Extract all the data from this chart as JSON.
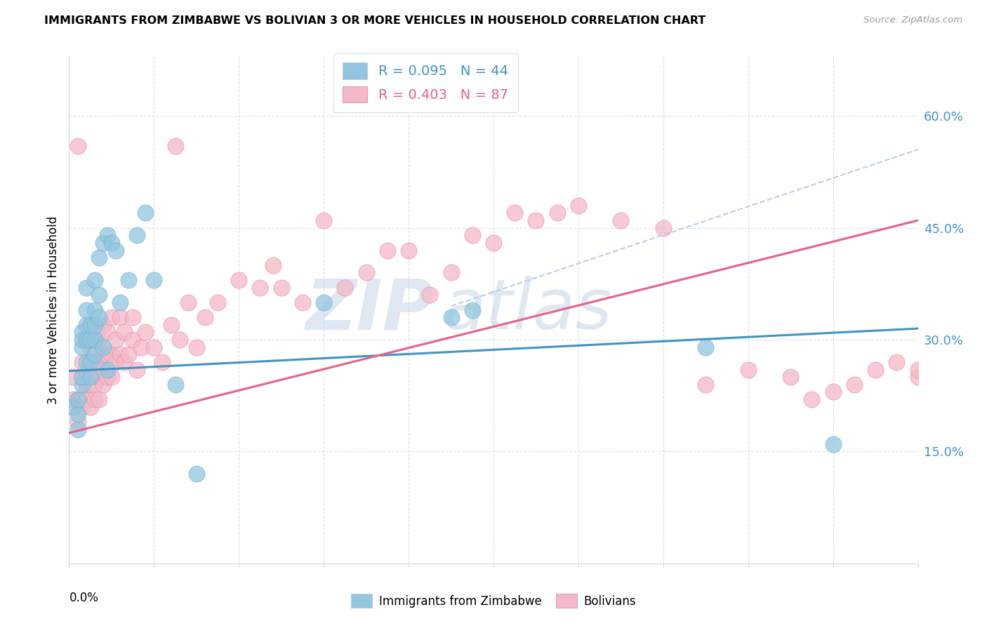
{
  "title": "IMMIGRANTS FROM ZIMBABWE VS BOLIVIAN 3 OR MORE VEHICLES IN HOUSEHOLD CORRELATION CHART",
  "source": "Source: ZipAtlas.com",
  "ylabel": "3 or more Vehicles in Household",
  "yticks_labels": [
    "60.0%",
    "45.0%",
    "30.0%",
    "15.0%"
  ],
  "ytick_vals": [
    0.6,
    0.45,
    0.3,
    0.15
  ],
  "xlim": [
    0.0,
    0.2
  ],
  "ylim": [
    0.0,
    0.68
  ],
  "color_blue": "#92c5de",
  "color_blue_edge": "#6aafd6",
  "color_pink": "#f4b8c8",
  "color_pink_edge": "#e8849e",
  "color_blue_line": "#4393c3",
  "color_pink_line": "#e8608a",
  "color_dashed": "#b8cfe8",
  "blue_line_x": [
    0.0,
    0.2
  ],
  "blue_line_y": [
    0.258,
    0.315
  ],
  "pink_line_x": [
    0.0,
    0.2
  ],
  "pink_line_y": [
    0.175,
    0.46
  ],
  "dashed_line_x": [
    0.09,
    0.2
  ],
  "dashed_line_y": [
    0.345,
    0.555
  ],
  "blue_scatter_x": [
    0.001,
    0.002,
    0.002,
    0.002,
    0.003,
    0.003,
    0.003,
    0.003,
    0.003,
    0.004,
    0.004,
    0.004,
    0.004,
    0.004,
    0.005,
    0.005,
    0.005,
    0.005,
    0.006,
    0.006,
    0.006,
    0.006,
    0.006,
    0.007,
    0.007,
    0.007,
    0.008,
    0.008,
    0.009,
    0.009,
    0.01,
    0.011,
    0.012,
    0.014,
    0.016,
    0.018,
    0.02,
    0.025,
    0.03,
    0.06,
    0.09,
    0.095,
    0.15,
    0.18
  ],
  "blue_scatter_y": [
    0.21,
    0.18,
    0.2,
    0.22,
    0.24,
    0.25,
    0.29,
    0.3,
    0.31,
    0.27,
    0.3,
    0.32,
    0.34,
    0.37,
    0.25,
    0.27,
    0.3,
    0.32,
    0.28,
    0.3,
    0.32,
    0.34,
    0.38,
    0.33,
    0.36,
    0.41,
    0.29,
    0.43,
    0.26,
    0.44,
    0.43,
    0.42,
    0.35,
    0.38,
    0.44,
    0.47,
    0.38,
    0.24,
    0.12,
    0.35,
    0.33,
    0.34,
    0.29,
    0.16
  ],
  "pink_scatter_x": [
    0.001,
    0.001,
    0.002,
    0.002,
    0.002,
    0.003,
    0.003,
    0.003,
    0.003,
    0.004,
    0.004,
    0.004,
    0.004,
    0.005,
    0.005,
    0.005,
    0.005,
    0.005,
    0.006,
    0.006,
    0.006,
    0.006,
    0.007,
    0.007,
    0.007,
    0.007,
    0.008,
    0.008,
    0.008,
    0.008,
    0.009,
    0.009,
    0.009,
    0.01,
    0.01,
    0.01,
    0.011,
    0.011,
    0.012,
    0.012,
    0.013,
    0.013,
    0.014,
    0.015,
    0.015,
    0.016,
    0.017,
    0.018,
    0.02,
    0.022,
    0.024,
    0.025,
    0.026,
    0.028,
    0.03,
    0.032,
    0.035,
    0.04,
    0.045,
    0.048,
    0.05,
    0.055,
    0.06,
    0.065,
    0.07,
    0.075,
    0.08,
    0.085,
    0.09,
    0.095,
    0.1,
    0.105,
    0.11,
    0.115,
    0.12,
    0.13,
    0.14,
    0.15,
    0.16,
    0.17,
    0.175,
    0.18,
    0.185,
    0.19,
    0.195,
    0.2,
    0.2
  ],
  "pink_scatter_y": [
    0.22,
    0.25,
    0.19,
    0.22,
    0.56,
    0.21,
    0.22,
    0.25,
    0.27,
    0.22,
    0.24,
    0.26,
    0.3,
    0.21,
    0.24,
    0.27,
    0.29,
    0.32,
    0.22,
    0.24,
    0.27,
    0.3,
    0.22,
    0.25,
    0.27,
    0.3,
    0.24,
    0.26,
    0.28,
    0.32,
    0.25,
    0.28,
    0.31,
    0.25,
    0.28,
    0.33,
    0.27,
    0.3,
    0.28,
    0.33,
    0.27,
    0.31,
    0.28,
    0.3,
    0.33,
    0.26,
    0.29,
    0.31,
    0.29,
    0.27,
    0.32,
    0.56,
    0.3,
    0.35,
    0.29,
    0.33,
    0.35,
    0.38,
    0.37,
    0.4,
    0.37,
    0.35,
    0.46,
    0.37,
    0.39,
    0.42,
    0.42,
    0.36,
    0.39,
    0.44,
    0.43,
    0.47,
    0.46,
    0.47,
    0.48,
    0.46,
    0.45,
    0.24,
    0.26,
    0.25,
    0.22,
    0.23,
    0.24,
    0.26,
    0.27,
    0.25,
    0.26
  ]
}
